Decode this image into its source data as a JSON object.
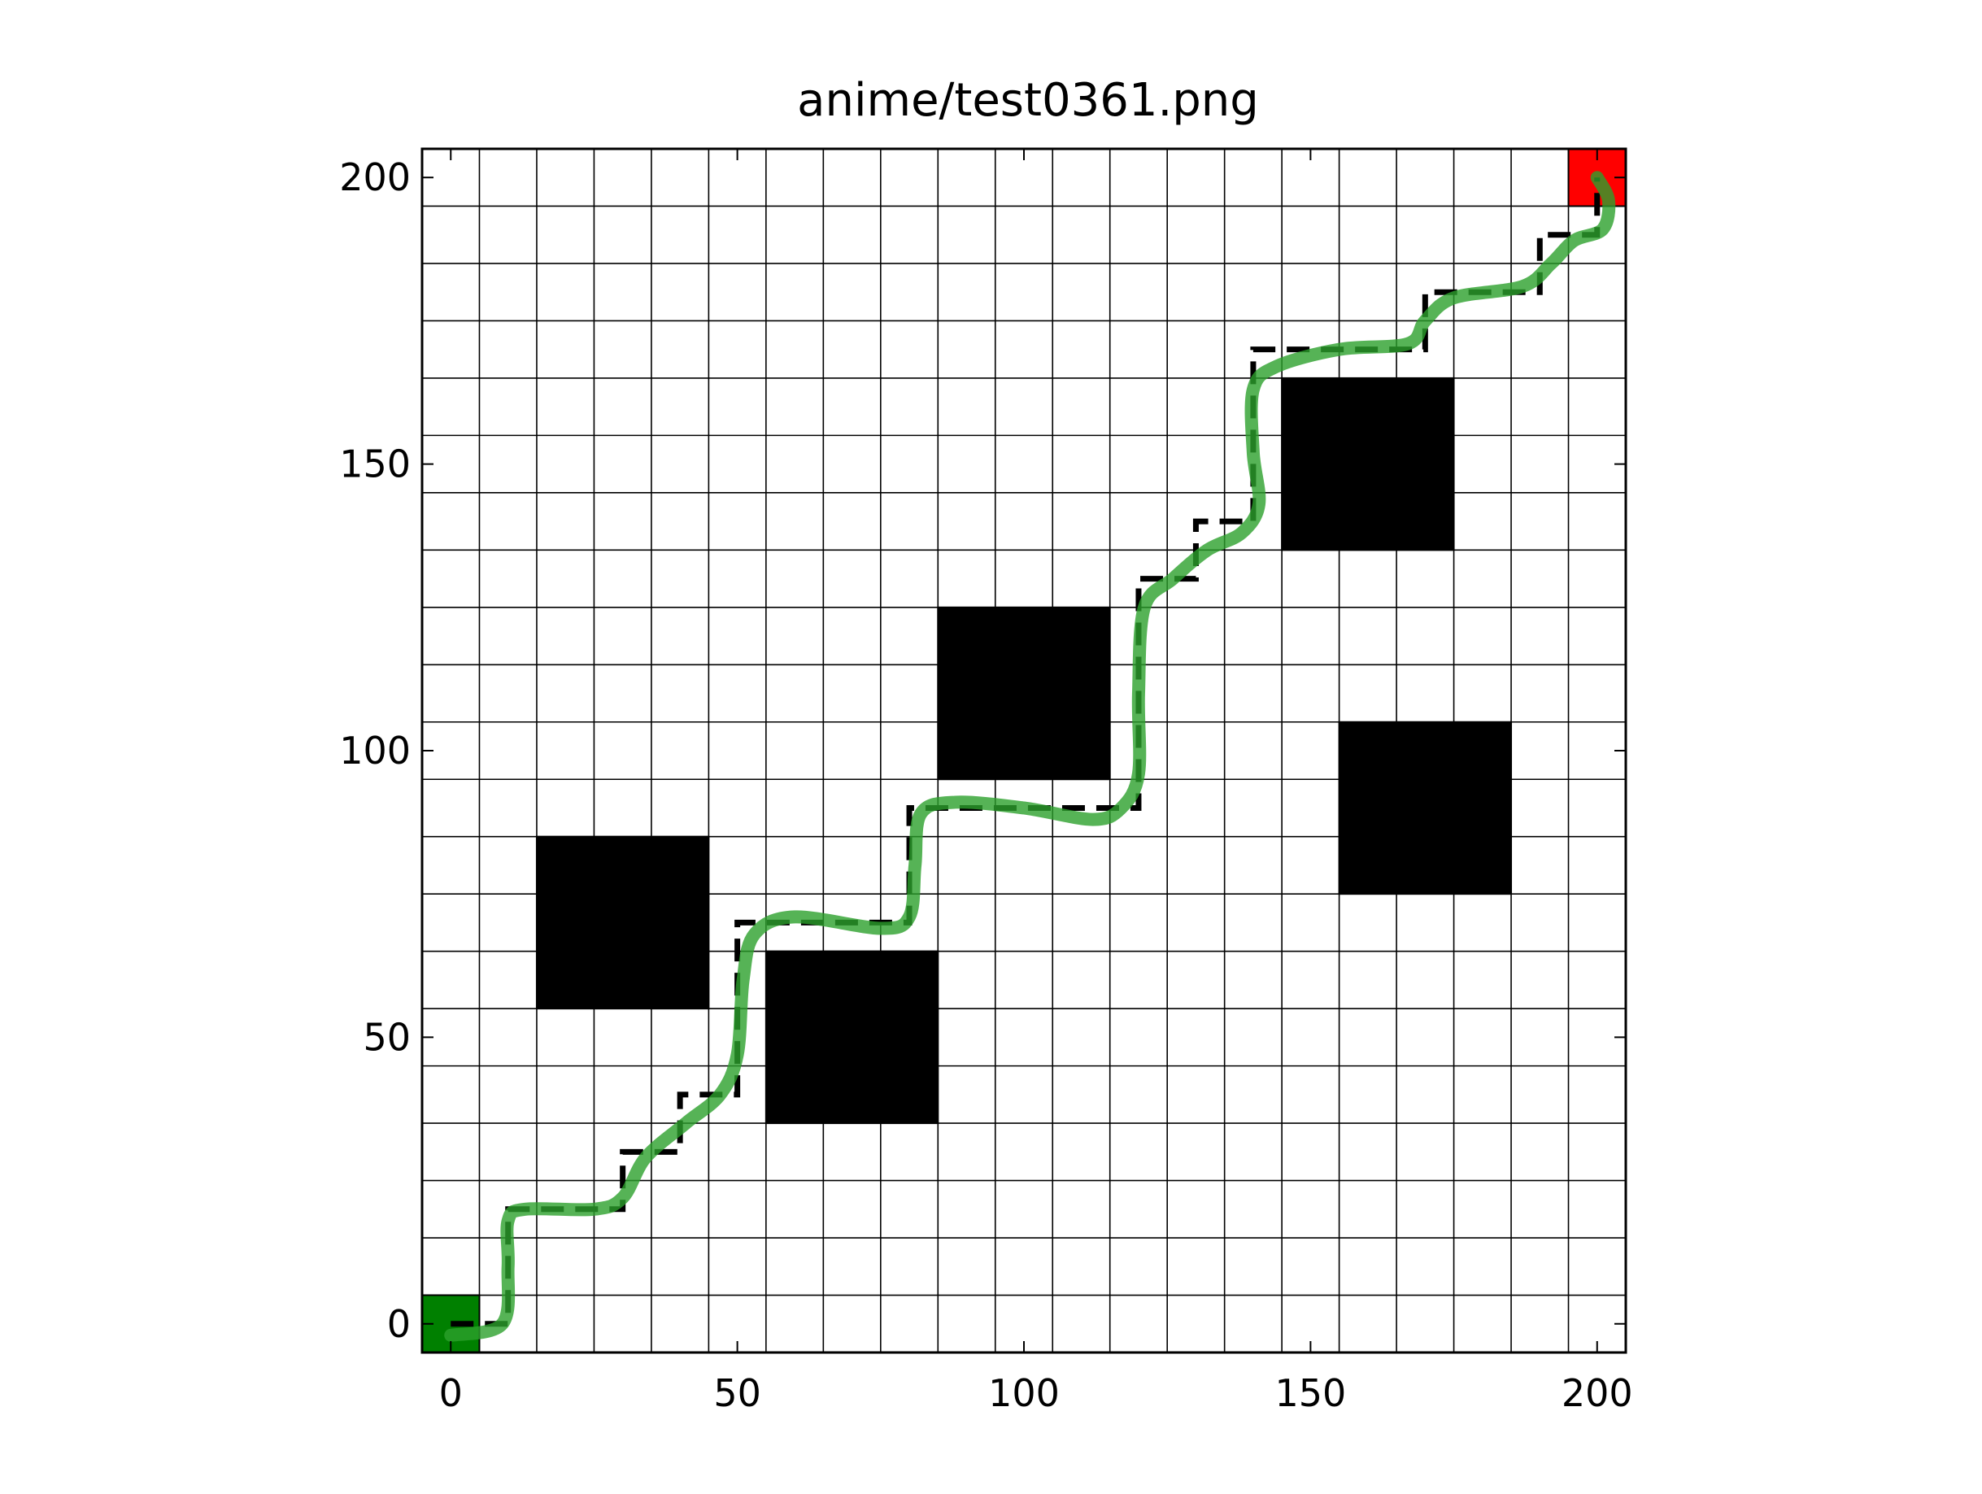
{
  "chart_data": {
    "type": "line",
    "title": "anime/test0361.png",
    "xlabel": "",
    "ylabel": "",
    "xlim": [
      -5,
      205
    ],
    "ylim": [
      -5,
      205
    ],
    "grid": true,
    "grid_step": 10,
    "x_ticks": [
      "0",
      "50",
      "100",
      "150",
      "200"
    ],
    "y_ticks": [
      "0",
      "50",
      "100",
      "150",
      "200"
    ],
    "start_cell": {
      "x": [
        -5,
        5
      ],
      "y": [
        -5,
        5
      ],
      "color": "#008000"
    },
    "goal_cell": {
      "x": [
        195,
        205
      ],
      "y": [
        195,
        205
      ],
      "color": "#ff0000"
    },
    "obstacles": [
      {
        "x": [
          15,
          45
        ],
        "y": [
          55,
          85
        ]
      },
      {
        "x": [
          55,
          85
        ],
        "y": [
          35,
          65
        ]
      },
      {
        "x": [
          85,
          115
        ],
        "y": [
          95,
          125
        ]
      },
      {
        "x": [
          145,
          175
        ],
        "y": [
          135,
          165
        ]
      },
      {
        "x": [
          155,
          185
        ],
        "y": [
          75,
          105
        ]
      }
    ],
    "series": [
      {
        "style": "dashed",
        "color": "#000000",
        "points": [
          [
            0,
            0
          ],
          [
            10,
            0
          ],
          [
            10,
            20
          ],
          [
            30,
            20
          ],
          [
            30,
            30
          ],
          [
            40,
            30
          ],
          [
            40,
            40
          ],
          [
            50,
            40
          ],
          [
            50,
            70
          ],
          [
            80,
            70
          ],
          [
            80,
            90
          ],
          [
            120,
            90
          ],
          [
            120,
            130
          ],
          [
            130,
            130
          ],
          [
            130,
            140
          ],
          [
            140,
            140
          ],
          [
            140,
            170
          ],
          [
            170,
            170
          ],
          [
            170,
            180
          ],
          [
            190,
            180
          ],
          [
            190,
            190
          ],
          [
            200,
            190
          ],
          [
            200,
            200
          ]
        ]
      },
      {
        "style": "smooth",
        "color": "#2ca02c",
        "opacity": 0.8,
        "points": [
          [
            0,
            -2
          ],
          [
            9,
            0
          ],
          [
            10,
            10
          ],
          [
            10,
            18
          ],
          [
            13,
            20
          ],
          [
            25,
            20
          ],
          [
            30,
            22
          ],
          [
            34,
            29
          ],
          [
            41,
            35
          ],
          [
            47,
            40
          ],
          [
            50,
            47
          ],
          [
            51,
            60
          ],
          [
            53,
            68
          ],
          [
            60,
            71
          ],
          [
            75,
            69
          ],
          [
            80,
            71
          ],
          [
            81,
            80
          ],
          [
            82,
            89
          ],
          [
            88,
            91
          ],
          [
            100,
            90
          ],
          [
            112,
            88
          ],
          [
            117,
            90
          ],
          [
            120,
            96
          ],
          [
            120,
            110
          ],
          [
            121,
            125
          ],
          [
            126,
            130
          ],
          [
            132,
            135
          ],
          [
            138,
            138
          ],
          [
            141,
            143
          ],
          [
            140,
            152
          ],
          [
            140,
            163
          ],
          [
            144,
            167
          ],
          [
            155,
            170
          ],
          [
            167,
            171
          ],
          [
            170,
            175
          ],
          [
            175,
            179
          ],
          [
            187,
            181
          ],
          [
            192,
            185
          ],
          [
            196,
            189
          ],
          [
            201,
            191
          ],
          [
            202,
            196
          ],
          [
            200,
            200
          ]
        ]
      }
    ]
  }
}
